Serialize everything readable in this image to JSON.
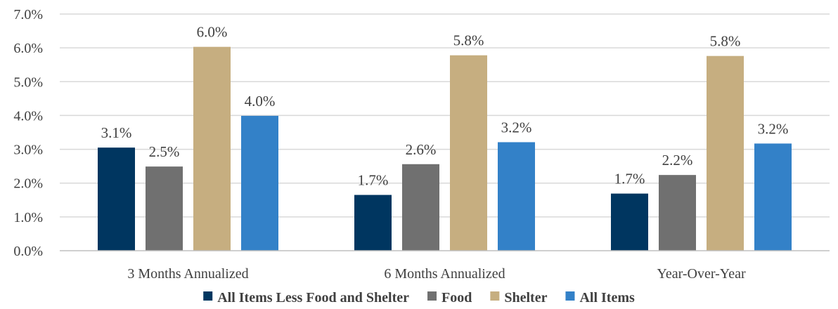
{
  "chart_data": {
    "type": "bar",
    "title": "",
    "xlabel": "",
    "ylabel": "",
    "categories": [
      "3 Months Annualized",
      "6 Months Annualized",
      "Year-Over-Year"
    ],
    "series": [
      {
        "name": "All Items Less Food and Shelter",
        "color": "#003660",
        "values": [
          3.05,
          1.65,
          1.69
        ],
        "labels": [
          "3.1%",
          "1.7%",
          "1.7%"
        ]
      },
      {
        "name": "Food",
        "color": "#707070",
        "values": [
          2.49,
          2.56,
          2.24
        ],
        "labels": [
          "2.5%",
          "2.6%",
          "2.2%"
        ]
      },
      {
        "name": "Shelter",
        "color": "#C6AE80",
        "values": [
          6.03,
          5.78,
          5.76
        ],
        "labels": [
          "6.0%",
          "5.8%",
          "5.8%"
        ]
      },
      {
        "name": "All Items",
        "color": "#3381C8",
        "values": [
          3.99,
          3.21,
          3.17
        ],
        "labels": [
          "4.0%",
          "3.2%",
          "3.2%"
        ]
      }
    ],
    "ylim": [
      0,
      7
    ],
    "yticks": [
      0,
      1,
      2,
      3,
      4,
      5,
      6,
      7
    ],
    "ytick_labels": [
      "0.0%",
      "1.0%",
      "2.0%",
      "3.0%",
      "4.0%",
      "5.0%",
      "6.0%",
      "7.0%"
    ],
    "grid": true,
    "legend": "bottom"
  }
}
